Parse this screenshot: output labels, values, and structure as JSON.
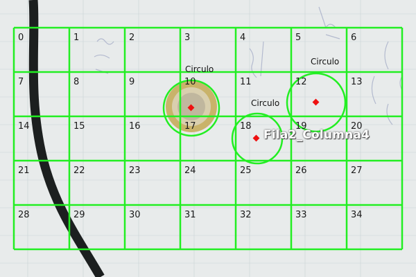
{
  "cells": [
    "0",
    "1",
    "2",
    "3",
    "4",
    "5",
    "6",
    "7",
    "8",
    "9",
    "10",
    "11",
    "12",
    "13",
    "14",
    "15",
    "16",
    "17",
    "18",
    "19",
    "20",
    "21",
    "22",
    "23",
    "24",
    "25",
    "26",
    "27",
    "28",
    "29",
    "30",
    "31",
    "32",
    "33",
    "34"
  ],
  "detections": [
    {
      "label": "Circulo"
    },
    {
      "label": "Circulo"
    },
    {
      "label": "Circulo"
    }
  ],
  "result_label": "Fila2_Columna4",
  "colors": {
    "grid": "#22ee22",
    "center": "#ee1111",
    "paper": "#e9ecec",
    "cable": "#1c1f1f",
    "coin": "#c9b36a"
  }
}
